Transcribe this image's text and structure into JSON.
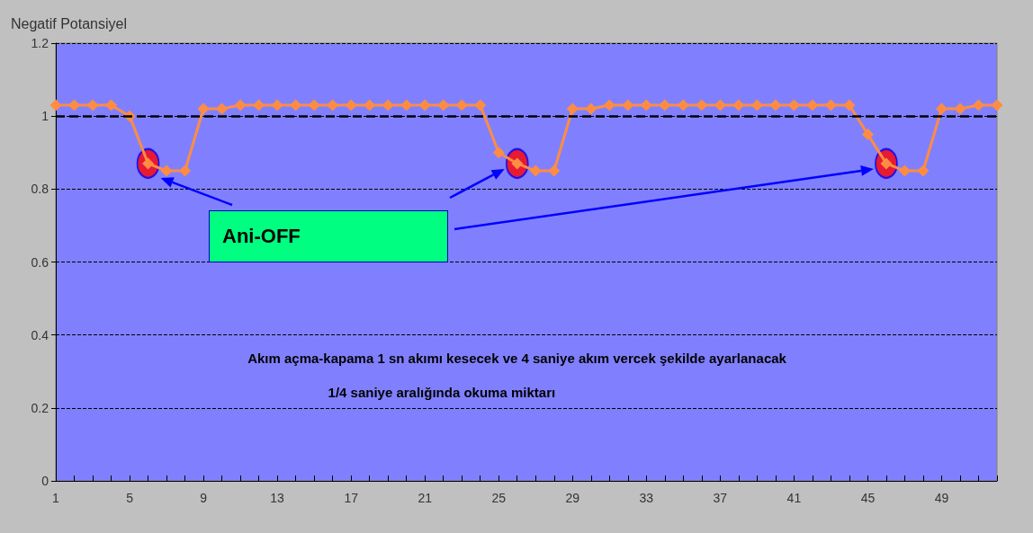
{
  "chart_data": {
    "type": "line",
    "ylabel": "Negatif Potansiyel",
    "categories": [
      "1",
      null,
      null,
      null,
      "5",
      null,
      null,
      null,
      "9",
      null,
      null,
      null,
      "13",
      null,
      null,
      null,
      "17",
      null,
      null,
      null,
      "21",
      null,
      null,
      null,
      "25",
      null,
      null,
      null,
      "29",
      null,
      null,
      null,
      "33",
      null,
      null,
      null,
      "37",
      null,
      null,
      null,
      "41",
      null,
      null,
      null,
      "45",
      null,
      null,
      null,
      "49",
      null,
      null,
      null
    ],
    "series": [
      {
        "color": "#ff8c42",
        "marker": "diamond",
        "values": [
          1.03,
          1.03,
          1.03,
          1.03,
          1.0,
          0.87,
          0.85,
          0.85,
          1.02,
          1.02,
          1.03,
          1.03,
          1.03,
          1.03,
          1.03,
          1.03,
          1.03,
          1.03,
          1.03,
          1.03,
          1.03,
          1.03,
          1.03,
          1.03,
          0.9,
          0.87,
          0.85,
          0.85,
          1.02,
          1.02,
          1.03,
          1.03,
          1.03,
          1.03,
          1.03,
          1.03,
          1.03,
          1.03,
          1.03,
          1.03,
          1.03,
          1.03,
          1.03,
          1.03,
          0.95,
          0.87,
          0.85,
          0.85,
          1.02,
          1.02,
          1.03,
          1.03
        ]
      },
      {
        "type": "scatter",
        "color": "#ff0000",
        "marker": "circle",
        "values": [
          null,
          null,
          null,
          null,
          null,
          0.87,
          null,
          null,
          null,
          null,
          null,
          null,
          null,
          null,
          null,
          null,
          null,
          null,
          null,
          null,
          null,
          null,
          null,
          null,
          null,
          0.87,
          null,
          null,
          null,
          null,
          null,
          null,
          null,
          null,
          null,
          null,
          null,
          null,
          null,
          null,
          null,
          null,
          null,
          null,
          null,
          0.87,
          null,
          null,
          null,
          null,
          null,
          null
        ]
      }
    ],
    "ylim": [
      0,
      1.2
    ],
    "yticks": [
      0,
      0.2,
      0.4,
      0.6,
      0.8,
      1,
      1.2
    ],
    "grid": "y",
    "ref_lines": [
      {
        "axis": "y",
        "value": 1,
        "color": "#000000",
        "line_style": "dashed"
      }
    ],
    "annotations": [
      "Ani-OFF",
      "Akım açma-kapama 1 sn akımı kesecek ve 4 saniye akım vercek şekilde ayarlanacak",
      "1/4 saniye aralığında okuma miktarı"
    ]
  }
}
